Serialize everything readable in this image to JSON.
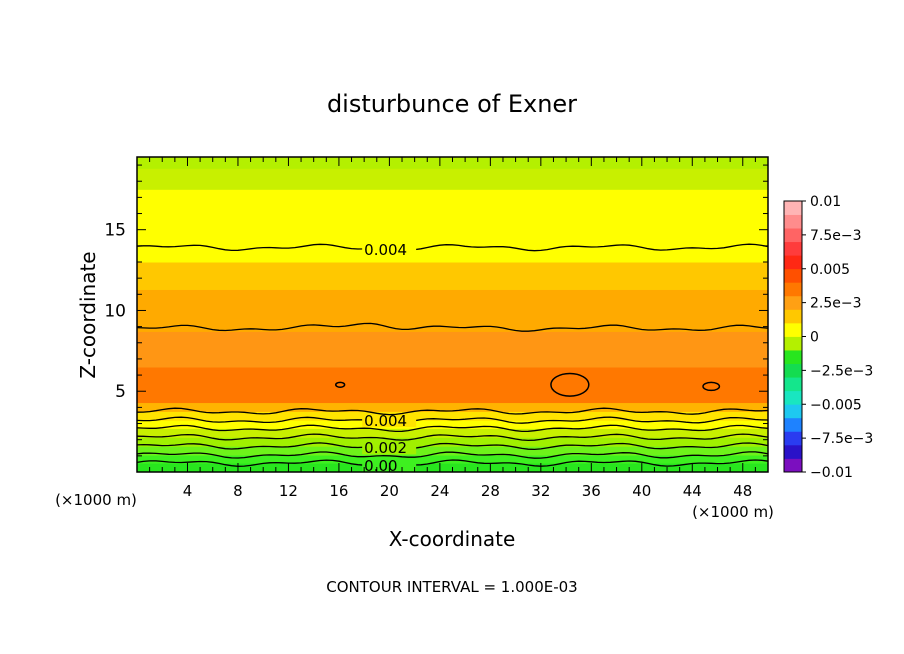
{
  "chart_data": {
    "type": "contour",
    "title": "disturbunce of Exner",
    "xlabel": "X-coordinate",
    "ylabel": "Z-coordinate",
    "x_unit_left": "(×1000 m)",
    "x_unit_right": "(×1000 m)",
    "footer": "CONTOUR INTERVAL = 1.000E-03",
    "xlim": [
      0,
      50
    ],
    "ylim": [
      0,
      19.5
    ],
    "x_ticks": [
      4,
      8,
      12,
      16,
      20,
      24,
      28,
      32,
      36,
      40,
      44,
      48
    ],
    "y_ticks": [
      5,
      10,
      15
    ],
    "contour_interval": 0.001,
    "colorbar": {
      "min": -0.01,
      "max": 0.01,
      "labels": [
        {
          "value": 0.01,
          "text": "0.01"
        },
        {
          "value": 0.0075,
          "text": "7.5e−3"
        },
        {
          "value": 0.005,
          "text": "0.005"
        },
        {
          "value": 0.0025,
          "text": "2.5e−3"
        },
        {
          "value": 0,
          "text": "0"
        },
        {
          "value": -0.0025,
          "text": "−2.5e−3"
        },
        {
          "value": -0.005,
          "text": "−0.005"
        },
        {
          "value": -0.0075,
          "text": "−7.5e−3"
        },
        {
          "value": -0.01,
          "text": "−0.01"
        }
      ],
      "colors": [
        "#7b0fbf",
        "#2a12c8",
        "#2a3cf0",
        "#1e82ff",
        "#1ec8f0",
        "#19e6c0",
        "#14e68c",
        "#14dc50",
        "#28e61e",
        "#b4f000",
        "#ffff00",
        "#ffc800",
        "#ffa014",
        "#ff7800",
        "#ff5000",
        "#ff2814",
        "#ff3c3c",
        "#ff6464",
        "#ff8c8c",
        "#ffb4b4"
      ]
    },
    "bands": [
      {
        "z0": 0,
        "z1": 0.55,
        "value": 0.0005,
        "color": "#28e61e"
      },
      {
        "z0": 0.55,
        "z1": 1.05,
        "value": 0.0008,
        "color": "#3ef020"
      },
      {
        "z0": 1.05,
        "z1": 1.6,
        "value": 0.0015,
        "color": "#6ef21a"
      },
      {
        "z0": 1.6,
        "z1": 2.15,
        "value": 0.002,
        "color": "#a0f000"
      },
      {
        "z0": 2.15,
        "z1": 2.7,
        "value": 0.0025,
        "color": "#c8f000"
      },
      {
        "z0": 2.7,
        "z1": 3.2,
        "value": 0.003,
        "color": "#ffff00"
      },
      {
        "z0": 3.2,
        "z1": 3.75,
        "value": 0.0035,
        "color": "#ffe400"
      },
      {
        "z0": 3.75,
        "z1": 4.3,
        "value": 0.0045,
        "color": "#ffb400"
      },
      {
        "z0": 4.3,
        "z1": 6.5,
        "value": 0.0057,
        "color": "#ff7800"
      },
      {
        "z0": 6.5,
        "z1": 8.7,
        "value": 0.0052,
        "color": "#ff9614"
      },
      {
        "z0": 8.7,
        "z1": 11.3,
        "value": 0.0049,
        "color": "#ffaa00"
      },
      {
        "z0": 11.3,
        "z1": 13.0,
        "value": 0.0045,
        "color": "#ffc800"
      },
      {
        "z0": 13.0,
        "z1": 17.5,
        "value": 0.0038,
        "color": "#ffff00"
      },
      {
        "z0": 17.5,
        "z1": 18.8,
        "value": 0.003,
        "color": "#c8f000"
      },
      {
        "z0": 18.8,
        "z1": 19.5,
        "value": 0.0025,
        "color": "#b4f000"
      }
    ],
    "contour_lines": [
      {
        "z": 0.55,
        "label": "0.00",
        "label_x": 18
      },
      {
        "z": 1.05,
        "label": "",
        "label_x": null
      },
      {
        "z": 1.6,
        "label": "0.002",
        "label_x": 18
      },
      {
        "z": 2.15,
        "label": "",
        "label_x": null
      },
      {
        "z": 2.7,
        "label": "",
        "label_x": null
      },
      {
        "z": 3.2,
        "label": "0.004",
        "label_x": 18
      },
      {
        "z": 3.75,
        "label": "",
        "label_x": null
      },
      {
        "z": 8.9,
        "label": "",
        "label_x": null
      },
      {
        "z": 13.9,
        "label": "0.004",
        "label_x": 18
      }
    ],
    "closed_contours": [
      {
        "x": 16.1,
        "z": 5.4,
        "rx": 0.35,
        "rz": 0.15
      },
      {
        "x": 34.3,
        "z": 5.4,
        "rx": 1.5,
        "rz": 0.7
      },
      {
        "x": 45.5,
        "z": 5.3,
        "rx": 0.65,
        "rz": 0.25
      }
    ]
  }
}
